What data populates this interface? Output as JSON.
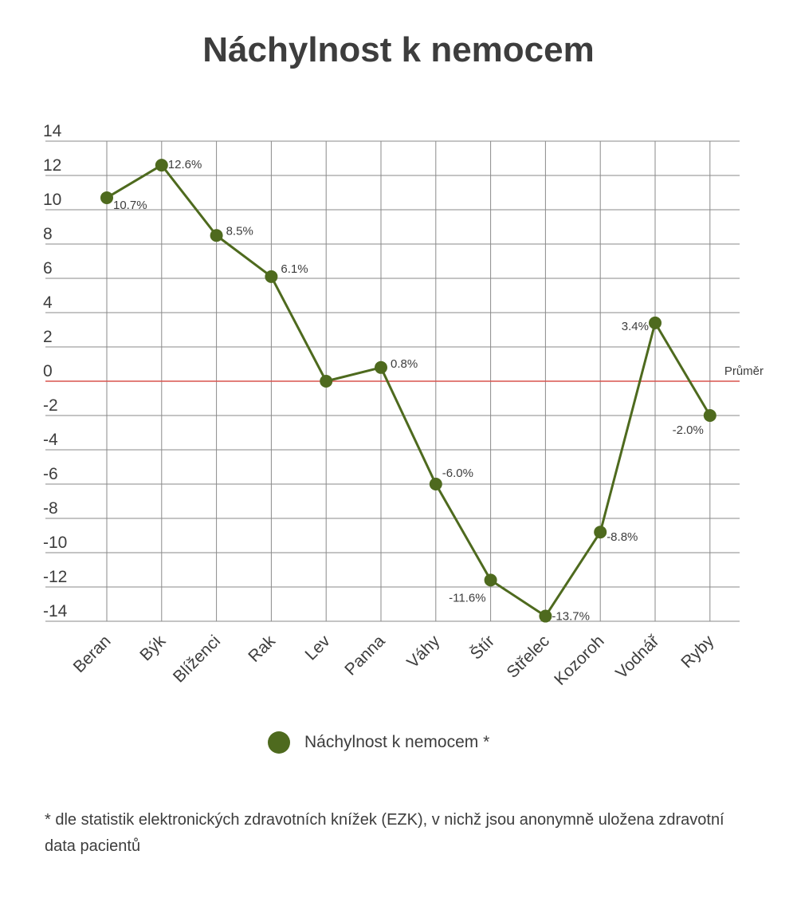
{
  "chart_data": {
    "type": "line",
    "title": "Náchylnost k nemocem",
    "categories": [
      "Beran",
      "Býk",
      "Blíženci",
      "Rak",
      "Lev",
      "Panna",
      "Váhy",
      "Štír",
      "Střelec",
      "Kozoroh",
      "Vodnář",
      "Ryby"
    ],
    "series": [
      {
        "name": "Náchylnost k nemocem *",
        "values": [
          10.7,
          12.6,
          8.5,
          6.1,
          0.0,
          0.8,
          -6.0,
          -11.6,
          -13.7,
          -8.8,
          3.4,
          -2.0
        ],
        "labels": [
          "10.7%",
          "12.6%",
          "8.5%",
          "6.1%",
          "",
          "0.8%",
          "-6.0%",
          "-11.6%",
          "-13.7%",
          "-8.8%",
          "3.4%",
          "-2.0%"
        ],
        "color": "#4e6a1e"
      }
    ],
    "ylim": [
      -14,
      14
    ],
    "yticks": [
      "14",
      "12",
      "10",
      "8",
      "6",
      "4",
      "2",
      "0",
      "-2",
      "-4",
      "-6",
      "-8",
      "-10",
      "-12",
      "-14"
    ],
    "reference_line": {
      "value": 0,
      "label": "Průměr",
      "color": "#d9534f"
    },
    "grid": true,
    "legend_position": "bottom"
  },
  "footnote": "* dle statistik elektronických zdravotních knížek (EZK), v nichž jsou anonymně uložena zdravotní data pacientů",
  "colors": {
    "grid": "#8a8a8a",
    "text": "#3d3d3d",
    "series": "#4e6a1e",
    "average": "#d9534f"
  }
}
